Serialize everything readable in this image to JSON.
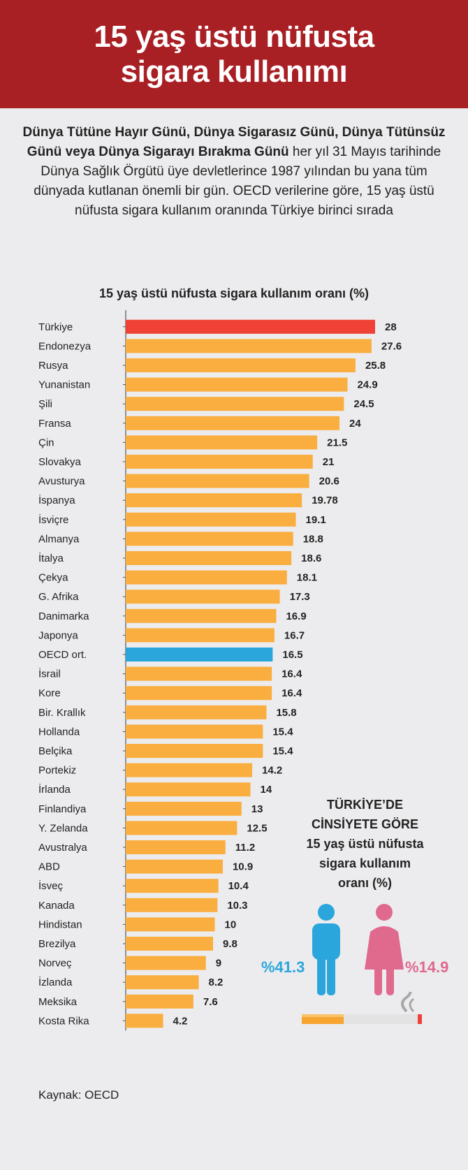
{
  "header": {
    "title_line1": "15 yaş üstü nüfusta",
    "title_line2": "sigara kullanımı"
  },
  "intro": {
    "bold_part": "Dünya Tütüne Hayır Günü, Dünya Sigarasız Günü, Dünya Tütünsüz Günü veya Dünya Sigarayı Bırakma Günü",
    "rest": " her yıl 31 Mayıs tarihinde Dünya Sağlık Örgütü üye devletlerince 1987 yılından bu yana tüm dünyada kutlanan önemli bir gün. OECD verilerine göre, 15 yaş üstü nüfusta sigara kullanım oranında Türkiye birinci sırada"
  },
  "colors": {
    "header": "#a81f24",
    "bar": "#f9ae3f",
    "highlight_turkey": "#ef4136",
    "highlight_oecd": "#2aa6dc",
    "male": "#2aa6dc",
    "female": "#e0698e"
  },
  "chart_data": {
    "type": "bar",
    "orientation": "horizontal",
    "title": "15 yaş üstü nüfusta sigara kullanım oranı (%)",
    "categories": [
      "Türkiye",
      "Endonezya",
      "Rusya",
      "Yunanistan",
      "Şili",
      "Fransa",
      "Çin",
      "Slovakya",
      "Avusturya",
      "İspanya",
      "İsviçre",
      "Almanya",
      "İtalya",
      "Çekya",
      "G. Afrika",
      "Danimarka",
      "Japonya",
      "OECD ort.",
      "İsrail",
      "Kore",
      "Bir. Krallık",
      "Hollanda",
      "Belçika",
      "Portekiz",
      "İrlanda",
      "Finlandiya",
      "Y. Zelanda",
      "Avustralya",
      "ABD",
      "İsveç",
      "Kanada",
      "Hindistan",
      "Brezilya",
      "Norveç",
      "İzlanda",
      "Meksika",
      "Kosta Rika"
    ],
    "values": [
      28,
      27.6,
      25.8,
      24.9,
      24.5,
      24,
      21.5,
      21,
      20.6,
      19.78,
      19.1,
      18.8,
      18.6,
      18.1,
      17.3,
      16.9,
      16.7,
      16.5,
      16.4,
      16.4,
      15.8,
      15.4,
      15.4,
      14.2,
      14,
      13,
      12.5,
      11.2,
      10.9,
      10.4,
      10.3,
      10,
      9.8,
      9,
      8.2,
      7.6,
      4.2
    ],
    "value_labels": [
      "28",
      "27.6",
      "25.8",
      "24.9",
      "24.5",
      "24",
      "21.5",
      "21",
      "20.6",
      "19.78",
      "19.1",
      "18.8",
      "18.6",
      "18.1",
      "17.3",
      "16.9",
      "16.7",
      "16.5",
      "16.4",
      "16.4",
      "15.8",
      "15.4",
      "15.4",
      "14.2",
      "14",
      "13",
      "12.5",
      "11.2",
      "10.9",
      "10.4",
      "10.3",
      "10",
      "9.8",
      "9",
      "8.2",
      "7.6",
      "4.2"
    ],
    "highlight": {
      "Türkiye": "#ef4136",
      "OECD ort.": "#2aa6dc"
    },
    "xlim": [
      0,
      28
    ]
  },
  "inset": {
    "line1": "TÜRKİYE’DE",
    "line2": "CİNSİYETE GÖRE",
    "line3": "15 yaş üstü nüfusta",
    "line4": "sigara kullanım",
    "line5": "oranı  (%)",
    "male_pct": "%41.3",
    "female_pct": "%14.9"
  },
  "footer": {
    "source": "Kaynak: OECD"
  }
}
